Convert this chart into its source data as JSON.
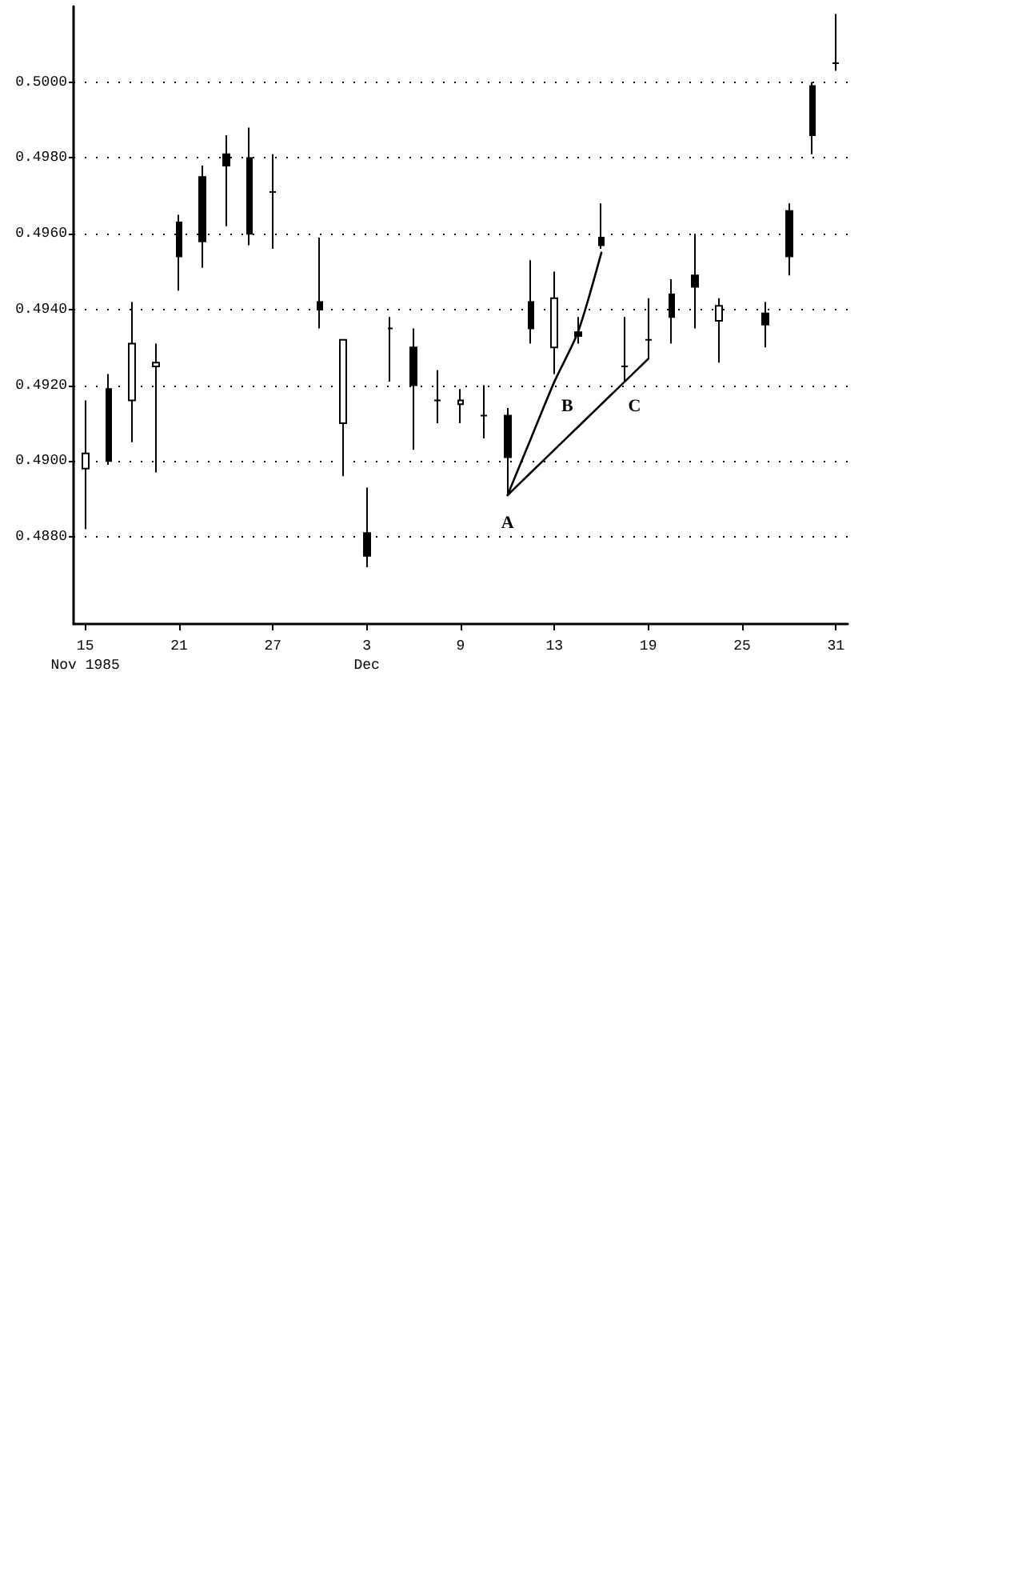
{
  "chart_data": {
    "type": "candlestick",
    "color": "#000000",
    "categories": [
      "15\nNov 1985",
      null,
      null,
      null,
      "21",
      null,
      null,
      null,
      "27",
      null,
      null,
      null,
      "3\nDec",
      null,
      null,
      null,
      "9",
      null,
      null,
      null,
      "13",
      null,
      null,
      null,
      "19",
      null,
      null,
      null,
      "25",
      null,
      null,
      null,
      "31"
    ],
    "ohlc": [
      [
        0.4902,
        0.4916,
        0.4882,
        0.4898
      ],
      [
        0.49,
        0.4923,
        0.4899,
        0.4919
      ],
      [
        0.4931,
        0.4942,
        0.4905,
        0.4916
      ],
      [
        0.4926,
        0.4931,
        0.4897,
        0.4925
      ],
      [
        0.4954,
        0.4965,
        0.4945,
        0.4963
      ],
      [
        0.4958,
        0.4978,
        0.4951,
        0.4975
      ],
      [
        0.4978,
        0.4986,
        0.4962,
        0.4981
      ],
      [
        0.496,
        0.4988,
        0.4957,
        0.498
      ],
      [
        0.4971,
        0.4981,
        0.4956,
        0.4971
      ],
      null,
      [
        0.494,
        0.4959,
        0.4935,
        0.4942
      ],
      [
        0.4932,
        0.4932,
        0.4896,
        0.491
      ],
      [
        0.4875,
        0.4893,
        0.4872,
        0.4881
      ],
      [
        0.4935,
        0.4938,
        0.4921,
        0.4935
      ],
      [
        0.492,
        0.4935,
        0.4903,
        0.493
      ],
      [
        0.4916,
        0.4924,
        0.491,
        0.4916
      ],
      [
        0.4916,
        0.4919,
        0.491,
        0.4915
      ],
      [
        0.4912,
        0.492,
        0.4906,
        0.4912
      ],
      [
        0.4901,
        0.4914,
        0.4891,
        0.4912
      ],
      [
        0.4935,
        0.4953,
        0.4931,
        0.4942
      ],
      [
        0.4943,
        0.495,
        0.4923,
        0.493
      ],
      [
        0.4933,
        0.4938,
        0.4931,
        0.4934
      ],
      [
        0.4957,
        0.4968,
        0.4956,
        0.4959
      ],
      [
        0.4925,
        0.4938,
        0.4921,
        0.4925
      ],
      [
        0.4932,
        0.4943,
        0.4927,
        0.4932
      ],
      [
        0.4938,
        0.4948,
        0.4931,
        0.4944
      ],
      [
        0.4946,
        0.496,
        0.4935,
        0.4949
      ],
      [
        0.4941,
        0.4943,
        0.4926,
        0.4937
      ],
      null,
      [
        0.4936,
        0.4942,
        0.493,
        0.4939
      ],
      [
        0.4954,
        0.4968,
        0.4949,
        0.4966
      ],
      [
        0.4986,
        0.5,
        0.4981,
        0.4999
      ],
      [
        0.5005,
        0.5018,
        0.5003,
        0.5005
      ]
    ],
    "series": [
      {
        "type": "line",
        "color": "#000000",
        "values": [
          null,
          null,
          null,
          null,
          null,
          null,
          null,
          null,
          null,
          null,
          null,
          null,
          null,
          null,
          null,
          null,
          null,
          null,
          0.4891,
          0.4906,
          0.4921,
          0.4934,
          0.4955,
          null,
          null,
          null,
          null,
          null,
          null,
          null,
          null,
          null,
          null
        ]
      },
      {
        "type": "line",
        "color": "#000000",
        "values": [
          null,
          null,
          null,
          null,
          null,
          null,
          null,
          null,
          null,
          null,
          null,
          null,
          null,
          null,
          null,
          null,
          null,
          null,
          0.4891,
          0.4897,
          0.4903,
          0.4909,
          0.4915,
          0.4921,
          0.4927,
          null,
          null,
          null,
          null,
          null,
          null,
          null,
          null
        ]
      }
    ],
    "annotations": [
      "A",
      "B",
      "C"
    ],
    "ylim": [
      0.4857,
      0.502
    ],
    "yticks": [
      {
        "value": 0.488,
        "label": "0.4880"
      },
      {
        "value": 0.49,
        "label": "0.4900"
      },
      {
        "value": 0.492,
        "label": "0.4920"
      },
      {
        "value": 0.494,
        "label": "0.4940"
      },
      {
        "value": 0.496,
        "label": "0.4960"
      },
      {
        "value": 0.498,
        "label": "0.4980"
      },
      {
        "value": 0.5,
        "label": "0.5000"
      }
    ],
    "grid": "y"
  }
}
